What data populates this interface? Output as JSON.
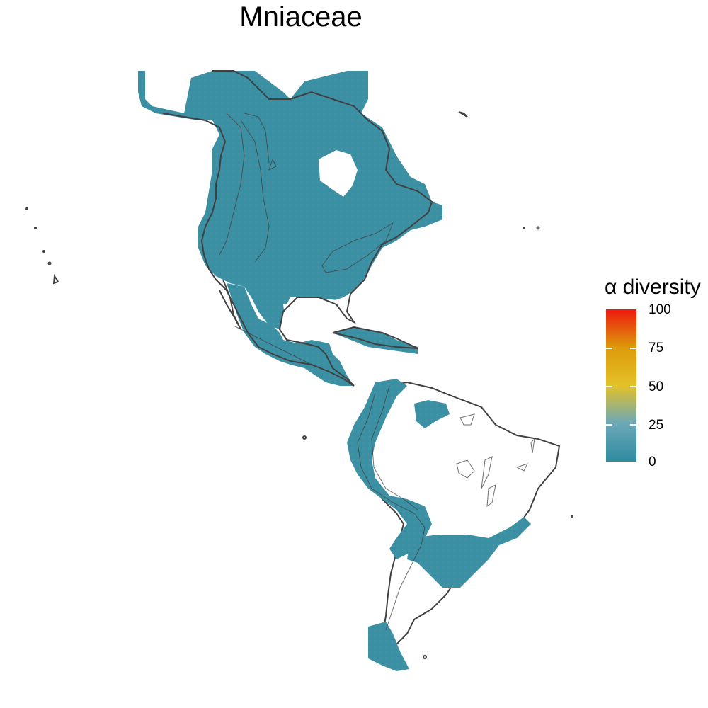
{
  "title": "Mniaceae",
  "legend": {
    "title": "α diversity",
    "ticks": [
      "100",
      "75",
      "50",
      "25",
      "0"
    ],
    "colors": [
      "#ee1a0e",
      "#dc9a0a",
      "#e4c128",
      "#6aa8b8",
      "#2f8ba0"
    ]
  },
  "colors": {
    "fill": "#3b8fa3",
    "fill_light": "#5fa0b2",
    "outline": "#404040"
  }
}
